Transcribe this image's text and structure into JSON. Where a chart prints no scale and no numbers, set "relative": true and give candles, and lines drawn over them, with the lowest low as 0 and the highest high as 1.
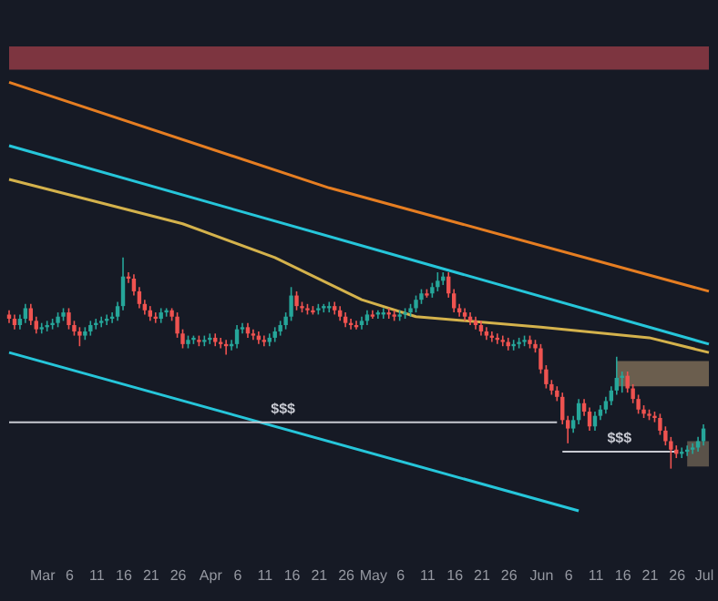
{
  "chart_data": {
    "type": "candlestick",
    "relative": true,
    "x": [
      "--02-24",
      "--02-25",
      "--02-26",
      "--02-27",
      "--02-28",
      "--02-29",
      "--03-01",
      "--03-02",
      "--03-03",
      "--03-04",
      "--03-05",
      "--03-06",
      "--03-07",
      "--03-08",
      "--03-09",
      "--03-10",
      "--03-11",
      "--03-12",
      "--03-13",
      "--03-14",
      "--03-15",
      "--03-16",
      "--03-17",
      "--03-18",
      "--03-19",
      "--03-20",
      "--03-21",
      "--03-22",
      "--03-23",
      "--03-24",
      "--03-25",
      "--03-26",
      "--03-27",
      "--03-28",
      "--03-29",
      "--03-30",
      "--03-31",
      "--04-01",
      "--04-02",
      "--04-03",
      "--04-04",
      "--04-05",
      "--04-06",
      "--04-07",
      "--04-08",
      "--04-09",
      "--04-10",
      "--04-11",
      "--04-12",
      "--04-13",
      "--04-14",
      "--04-15",
      "--04-16",
      "--04-17",
      "--04-18",
      "--04-19",
      "--04-20",
      "--04-21",
      "--04-22",
      "--04-23",
      "--04-24",
      "--04-25",
      "--04-26",
      "--04-27",
      "--04-28",
      "--04-29",
      "--04-30",
      "--05-01",
      "--05-02",
      "--05-03",
      "--05-04",
      "--05-05",
      "--05-06",
      "--05-07",
      "--05-08",
      "--05-09",
      "--05-10",
      "--05-11",
      "--05-12",
      "--05-13",
      "--05-14",
      "--05-15",
      "--05-16",
      "--05-17",
      "--05-18",
      "--05-19",
      "--05-20",
      "--05-21",
      "--05-22",
      "--05-23",
      "--05-24",
      "--05-25",
      "--05-26",
      "--05-27",
      "--05-28",
      "--05-29",
      "--05-30",
      "--05-31",
      "--06-01",
      "--06-02",
      "--06-03",
      "--06-04",
      "--06-05",
      "--06-06",
      "--06-07",
      "--06-08",
      "--06-09",
      "--06-10",
      "--06-11",
      "--06-12",
      "--06-13",
      "--06-14",
      "--06-15",
      "--06-16",
      "--06-17",
      "--06-18",
      "--06-19",
      "--06-20",
      "--06-21",
      "--06-22",
      "--06-23",
      "--06-24",
      "--06-25",
      "--06-26",
      "--06-27",
      "--06-28",
      "--06-29",
      "--06-30",
      "--07-01"
    ],
    "ohlc": [
      [
        0.73,
        0.75,
        0.69,
        0.71
      ],
      [
        0.71,
        0.73,
        0.66,
        0.68
      ],
      [
        0.68,
        0.73,
        0.66,
        0.71
      ],
      [
        0.71,
        0.78,
        0.69,
        0.76
      ],
      [
        0.76,
        0.78,
        0.68,
        0.7
      ],
      [
        0.7,
        0.72,
        0.64,
        0.66
      ],
      [
        0.66,
        0.69,
        0.64,
        0.67
      ],
      [
        0.67,
        0.7,
        0.65,
        0.68
      ],
      [
        0.68,
        0.71,
        0.66,
        0.69
      ],
      [
        0.69,
        0.74,
        0.67,
        0.72
      ],
      [
        0.72,
        0.76,
        0.7,
        0.74
      ],
      [
        0.74,
        0.76,
        0.66,
        0.68
      ],
      [
        0.68,
        0.7,
        0.63,
        0.65
      ],
      [
        0.65,
        0.67,
        0.58,
        0.63
      ],
      [
        0.63,
        0.67,
        0.61,
        0.65
      ],
      [
        0.65,
        0.7,
        0.63,
        0.68
      ],
      [
        0.68,
        0.71,
        0.66,
        0.69
      ],
      [
        0.69,
        0.72,
        0.67,
        0.7
      ],
      [
        0.7,
        0.73,
        0.68,
        0.71
      ],
      [
        0.71,
        0.74,
        0.69,
        0.72
      ],
      [
        0.72,
        0.79,
        0.7,
        0.77
      ],
      [
        0.77,
        1.0,
        0.75,
        0.91
      ],
      [
        0.91,
        0.93,
        0.88,
        0.9
      ],
      [
        0.9,
        0.92,
        0.82,
        0.84
      ],
      [
        0.84,
        0.86,
        0.76,
        0.78
      ],
      [
        0.78,
        0.8,
        0.73,
        0.75
      ],
      [
        0.75,
        0.77,
        0.7,
        0.72
      ],
      [
        0.72,
        0.74,
        0.69,
        0.71
      ],
      [
        0.71,
        0.76,
        0.69,
        0.74
      ],
      [
        0.74,
        0.76,
        0.72,
        0.75
      ],
      [
        0.75,
        0.76,
        0.7,
        0.72
      ],
      [
        0.72,
        0.74,
        0.62,
        0.64
      ],
      [
        0.64,
        0.66,
        0.57,
        0.59
      ],
      [
        0.59,
        0.63,
        0.57,
        0.61
      ],
      [
        0.61,
        0.63,
        0.59,
        0.62
      ],
      [
        0.61,
        0.63,
        0.58,
        0.6
      ],
      [
        0.6,
        0.63,
        0.58,
        0.61
      ],
      [
        0.61,
        0.64,
        0.59,
        0.62
      ],
      [
        0.62,
        0.64,
        0.58,
        0.6
      ],
      [
        0.6,
        0.62,
        0.57,
        0.59
      ],
      [
        0.59,
        0.61,
        0.54,
        0.58
      ],
      [
        0.58,
        0.61,
        0.56,
        0.59
      ],
      [
        0.59,
        0.68,
        0.57,
        0.66
      ],
      [
        0.66,
        0.69,
        0.64,
        0.67
      ],
      [
        0.67,
        0.69,
        0.62,
        0.64
      ],
      [
        0.64,
        0.66,
        0.61,
        0.63
      ],
      [
        0.63,
        0.65,
        0.59,
        0.61
      ],
      [
        0.61,
        0.63,
        0.58,
        0.6
      ],
      [
        0.6,
        0.64,
        0.58,
        0.62
      ],
      [
        0.62,
        0.67,
        0.6,
        0.65
      ],
      [
        0.65,
        0.7,
        0.63,
        0.68
      ],
      [
        0.68,
        0.74,
        0.66,
        0.72
      ],
      [
        0.72,
        0.86,
        0.7,
        0.82
      ],
      [
        0.82,
        0.84,
        0.75,
        0.77
      ],
      [
        0.77,
        0.79,
        0.74,
        0.76
      ],
      [
        0.76,
        0.78,
        0.73,
        0.75
      ],
      [
        0.75,
        0.77,
        0.73,
        0.74
      ],
      [
        0.75,
        0.78,
        0.73,
        0.76
      ],
      [
        0.76,
        0.78,
        0.74,
        0.77
      ],
      [
        0.76,
        0.79,
        0.74,
        0.77
      ],
      [
        0.77,
        0.79,
        0.73,
        0.75
      ],
      [
        0.75,
        0.77,
        0.7,
        0.72
      ],
      [
        0.72,
        0.74,
        0.67,
        0.69
      ],
      [
        0.69,
        0.71,
        0.66,
        0.68
      ],
      [
        0.68,
        0.7,
        0.66,
        0.67
      ],
      [
        0.68,
        0.72,
        0.66,
        0.7
      ],
      [
        0.7,
        0.75,
        0.68,
        0.73
      ],
      [
        0.73,
        0.75,
        0.71,
        0.72
      ],
      [
        0.73,
        0.75,
        0.71,
        0.74
      ],
      [
        0.73,
        0.76,
        0.71,
        0.74
      ],
      [
        0.74,
        0.76,
        0.71,
        0.73
      ],
      [
        0.73,
        0.75,
        0.7,
        0.72
      ],
      [
        0.72,
        0.75,
        0.7,
        0.73
      ],
      [
        0.73,
        0.76,
        0.71,
        0.74
      ],
      [
        0.74,
        0.78,
        0.72,
        0.76
      ],
      [
        0.76,
        0.82,
        0.74,
        0.8
      ],
      [
        0.8,
        0.85,
        0.78,
        0.83
      ],
      [
        0.83,
        0.85,
        0.81,
        0.82
      ],
      [
        0.83,
        0.88,
        0.81,
        0.86
      ],
      [
        0.86,
        0.93,
        0.84,
        0.89
      ],
      [
        0.89,
        0.93,
        0.87,
        0.91
      ],
      [
        0.91,
        0.93,
        0.81,
        0.83
      ],
      [
        0.83,
        0.85,
        0.74,
        0.76
      ],
      [
        0.76,
        0.78,
        0.72,
        0.74
      ],
      [
        0.74,
        0.76,
        0.7,
        0.72
      ],
      [
        0.72,
        0.74,
        0.68,
        0.7
      ],
      [
        0.7,
        0.72,
        0.66,
        0.68
      ],
      [
        0.68,
        0.7,
        0.63,
        0.65
      ],
      [
        0.65,
        0.67,
        0.61,
        0.63
      ],
      [
        0.63,
        0.65,
        0.6,
        0.62
      ],
      [
        0.62,
        0.64,
        0.59,
        0.61
      ],
      [
        0.61,
        0.63,
        0.58,
        0.6
      ],
      [
        0.6,
        0.62,
        0.56,
        0.58
      ],
      [
        0.58,
        0.61,
        0.56,
        0.59
      ],
      [
        0.59,
        0.62,
        0.57,
        0.6
      ],
      [
        0.6,
        0.63,
        0.58,
        0.61
      ],
      [
        0.61,
        0.63,
        0.57,
        0.59
      ],
      [
        0.59,
        0.61,
        0.55,
        0.57
      ],
      [
        0.57,
        0.59,
        0.45,
        0.47
      ],
      [
        0.47,
        0.49,
        0.38,
        0.4
      ],
      [
        0.4,
        0.42,
        0.35,
        0.37
      ],
      [
        0.37,
        0.39,
        0.32,
        0.34
      ],
      [
        0.34,
        0.36,
        0.21,
        0.23
      ],
      [
        0.23,
        0.25,
        0.12,
        0.19
      ],
      [
        0.19,
        0.25,
        0.17,
        0.23
      ],
      [
        0.23,
        0.33,
        0.21,
        0.31
      ],
      [
        0.31,
        0.33,
        0.25,
        0.27
      ],
      [
        0.27,
        0.29,
        0.18,
        0.2
      ],
      [
        0.2,
        0.27,
        0.18,
        0.25
      ],
      [
        0.25,
        0.3,
        0.23,
        0.28
      ],
      [
        0.28,
        0.34,
        0.26,
        0.32
      ],
      [
        0.32,
        0.39,
        0.3,
        0.37
      ],
      [
        0.37,
        0.53,
        0.35,
        0.43
      ],
      [
        0.43,
        0.46,
        0.36,
        0.44
      ],
      [
        0.44,
        0.46,
        0.36,
        0.38
      ],
      [
        0.38,
        0.4,
        0.31,
        0.33
      ],
      [
        0.33,
        0.35,
        0.26,
        0.28
      ],
      [
        0.28,
        0.3,
        0.24,
        0.26
      ],
      [
        0.26,
        0.28,
        0.23,
        0.25
      ],
      [
        0.25,
        0.27,
        0.22,
        0.24
      ],
      [
        0.24,
        0.26,
        0.16,
        0.18
      ],
      [
        0.18,
        0.2,
        0.11,
        0.13
      ],
      [
        0.13,
        0.15,
        0,
        0.09
      ],
      [
        0.09,
        0.11,
        0.05,
        0.07
      ],
      [
        0.07,
        0.1,
        0.05,
        0.08
      ],
      [
        0.08,
        0.11,
        0.06,
        0.09
      ],
      [
        0.09,
        0.12,
        0.07,
        0.1
      ],
      [
        0.1,
        0.15,
        0.08,
        0.13
      ],
      [
        0.13,
        0.21,
        0.11,
        0.19
      ]
    ],
    "xlim": [
      "--02-24",
      "--07-02"
    ],
    "xticks": [
      {
        "value": "--03-01",
        "label": "Mar"
      },
      {
        "value": "--03-06",
        "label": "6"
      },
      {
        "value": "--03-11",
        "label": "11"
      },
      {
        "value": "--03-16",
        "label": "16"
      },
      {
        "value": "--03-21",
        "label": "21"
      },
      {
        "value": "--03-26",
        "label": "26"
      },
      {
        "value": "--04-01",
        "label": "Apr"
      },
      {
        "value": "--04-06",
        "label": "6"
      },
      {
        "value": "--04-11",
        "label": "11"
      },
      {
        "value": "--04-16",
        "label": "16"
      },
      {
        "value": "--04-21",
        "label": "21"
      },
      {
        "value": "--04-26",
        "label": "26"
      },
      {
        "value": "--05-01",
        "label": "May"
      },
      {
        "value": "--05-06",
        "label": "6"
      },
      {
        "value": "--05-11",
        "label": "11"
      },
      {
        "value": "--05-16",
        "label": "16"
      },
      {
        "value": "--05-21",
        "label": "21"
      },
      {
        "value": "--05-26",
        "label": "26"
      },
      {
        "value": "--06-01",
        "label": "Jun"
      },
      {
        "value": "--06-06",
        "label": "6"
      },
      {
        "value": "--06-11",
        "label": "11"
      },
      {
        "value": "--06-16",
        "label": "16"
      },
      {
        "value": "--06-21",
        "label": "21"
      },
      {
        "value": "--06-26",
        "label": "26"
      },
      {
        "value": "--07-01",
        "label": "Jul"
      }
    ],
    "series": [
      {
        "type": "line",
        "color": "#26c6da",
        "x": [
          "--02-24",
          "--07-02"
        ],
        "values": [
          1.53,
          0.59
        ]
      },
      {
        "type": "line",
        "color": "#26c6da",
        "x": [
          "--02-24",
          "--06-08"
        ],
        "values": [
          0.55,
          -0.2
        ]
      },
      {
        "type": "line",
        "color": "#e67e22",
        "x": [
          "--02-24",
          "--04-23",
          "--07-02"
        ],
        "values": [
          1.83,
          1.33,
          0.84
        ]
      },
      {
        "type": "line",
        "color": "#d4b24c",
        "x": [
          "--02-24",
          "--03-27",
          "--04-13",
          "--04-29",
          "--05-09",
          "--06-01",
          "--06-21",
          "--07-02"
        ],
        "values": [
          1.37,
          1.16,
          1.0,
          0.8,
          0.72,
          0.67,
          0.62,
          0.55
        ]
      },
      {
        "type": "line",
        "name": "$$$",
        "color": "#c8cad2",
        "x": [
          "--02-24",
          "--06-04"
        ],
        "values": [
          0.22,
          0.22
        ]
      },
      {
        "type": "line",
        "name": "$$$",
        "color": "#c8cad2",
        "x": [
          "--06-05",
          "--06-26"
        ],
        "values": [
          0.08,
          0.08
        ]
      },
      {
        "type": "line",
        "color": "#6b5e4e",
        "x": [
          "--06-15",
          "--07-02"
        ],
        "values": [
          null,
          null
        ],
        "lower": [
          0.39,
          0.39
        ],
        "upper": [
          0.51,
          0.51
        ]
      },
      {
        "type": "line",
        "color": "#5a5249",
        "x": [
          "--06-28",
          "--07-02"
        ],
        "values": [
          null,
          null
        ],
        "lower": [
          0.01,
          0.01
        ],
        "upper": [
          0.13,
          0.13
        ]
      }
    ],
    "bands": [
      {
        "axis": "y",
        "from": 1.89,
        "to": 2.0,
        "color": "#7d3540"
      }
    ],
    "grid": false
  }
}
